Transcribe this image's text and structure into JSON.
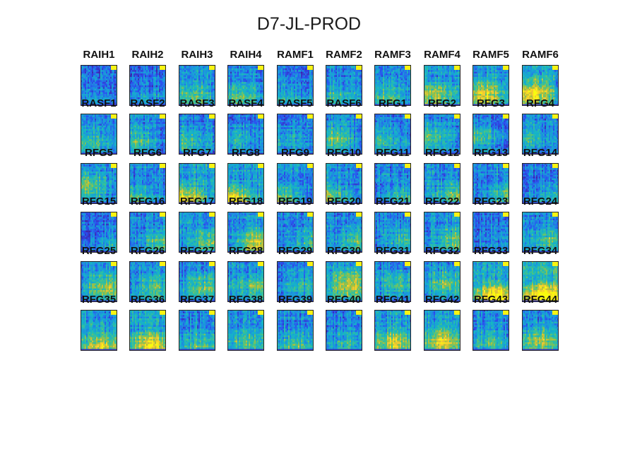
{
  "chart_data": {
    "type": "heatmap",
    "title": "D7-JL-PROD",
    "colormap": "parula",
    "colormap_colors": [
      "#3e26a8",
      "#2a4ff0",
      "#1d8fe0",
      "#14b3c9",
      "#3ec28f",
      "#a7c03c",
      "#f6c832",
      "#f9fb0e"
    ],
    "panels": [
      {
        "label": "RAIH1",
        "intensity": 0.15
      },
      {
        "label": "RAIH2",
        "intensity": 0.15
      },
      {
        "label": "RAIH3",
        "intensity": 0.35
      },
      {
        "label": "RAIH4",
        "intensity": 0.3
      },
      {
        "label": "RAMF1",
        "intensity": 0.2
      },
      {
        "label": "RAMF2",
        "intensity": 0.25
      },
      {
        "label": "RAMF3",
        "intensity": 0.3
      },
      {
        "label": "RAMF4",
        "intensity": 0.4
      },
      {
        "label": "RAMF5",
        "intensity": 0.5
      },
      {
        "label": "RAMF6",
        "intensity": 0.55
      },
      {
        "label": "RASF1",
        "intensity": 0.25
      },
      {
        "label": "RASF2",
        "intensity": 0.25
      },
      {
        "label": "RASF3",
        "intensity": 0.25
      },
      {
        "label": "RASF4",
        "intensity": 0.2
      },
      {
        "label": "RASF5",
        "intensity": 0.2
      },
      {
        "label": "RASF6",
        "intensity": 0.35
      },
      {
        "label": "RFG1",
        "intensity": 0.25
      },
      {
        "label": "RFG2",
        "intensity": 0.3
      },
      {
        "label": "RFG3",
        "intensity": 0.25
      },
      {
        "label": "RFG4",
        "intensity": 0.25
      },
      {
        "label": "RFG5",
        "intensity": 0.35
      },
      {
        "label": "RFG6",
        "intensity": 0.3
      },
      {
        "label": "RFG7",
        "intensity": 0.6
      },
      {
        "label": "RFG8",
        "intensity": 0.6
      },
      {
        "label": "RFG9",
        "intensity": 0.35
      },
      {
        "label": "RFG10",
        "intensity": 0.35
      },
      {
        "label": "RFG11",
        "intensity": 0.3
      },
      {
        "label": "RFG12",
        "intensity": 0.35
      },
      {
        "label": "RFG13",
        "intensity": 0.3
      },
      {
        "label": "RFG14",
        "intensity": 0.2
      },
      {
        "label": "RFG15",
        "intensity": 0.2
      },
      {
        "label": "RFG16",
        "intensity": 0.3
      },
      {
        "label": "RFG17",
        "intensity": 0.4
      },
      {
        "label": "RFG18",
        "intensity": 0.45
      },
      {
        "label": "RFG19",
        "intensity": 0.25
      },
      {
        "label": "RFG20",
        "intensity": 0.3
      },
      {
        "label": "RFG21",
        "intensity": 0.3
      },
      {
        "label": "RFG22",
        "intensity": 0.3
      },
      {
        "label": "RFG23",
        "intensity": 0.1
      },
      {
        "label": "RFG24",
        "intensity": 0.3
      },
      {
        "label": "RFG25",
        "intensity": 0.35
      },
      {
        "label": "RFG26",
        "intensity": 0.3
      },
      {
        "label": "RFG27",
        "intensity": 0.3
      },
      {
        "label": "RFG28",
        "intensity": 0.3
      },
      {
        "label": "RFG29",
        "intensity": 0.2
      },
      {
        "label": "RFG30",
        "intensity": 0.45
      },
      {
        "label": "RFG31",
        "intensity": 0.25
      },
      {
        "label": "RFG32",
        "intensity": 0.35
      },
      {
        "label": "RFG33",
        "intensity": 0.7
      },
      {
        "label": "RFG34",
        "intensity": 0.75
      },
      {
        "label": "RFG35",
        "intensity": 0.45
      },
      {
        "label": "RFG36",
        "intensity": 0.55
      },
      {
        "label": "RFG37",
        "intensity": 0.3
      },
      {
        "label": "RFG38",
        "intensity": 0.35
      },
      {
        "label": "RFG39",
        "intensity": 0.3
      },
      {
        "label": "RFG40",
        "intensity": 0.2
      },
      {
        "label": "RFG41",
        "intensity": 0.45
      },
      {
        "label": "RFG42",
        "intensity": 0.5
      },
      {
        "label": "RFG43",
        "intensity": 0.25
      },
      {
        "label": "RFG44",
        "intensity": 0.4
      }
    ]
  }
}
